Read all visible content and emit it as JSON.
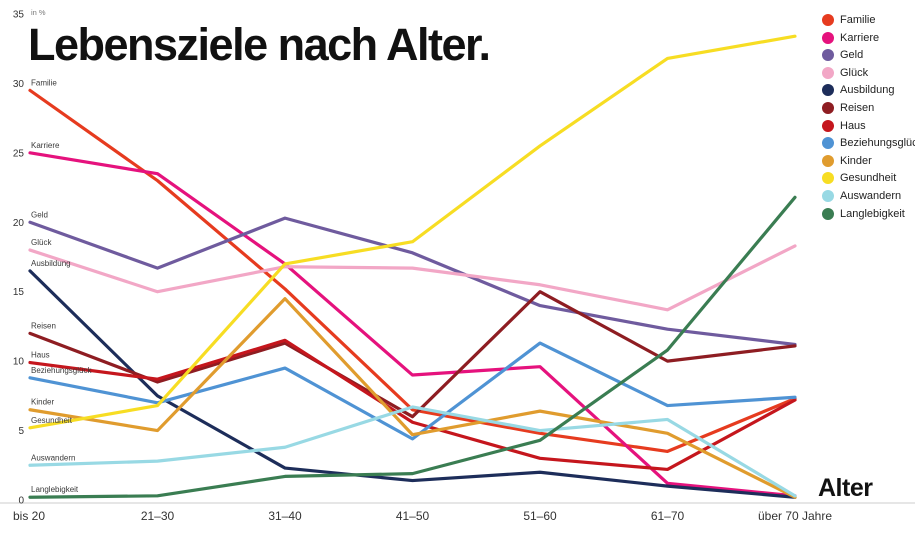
{
  "title": "Lebensziele nach Alter.",
  "x_axis_title": "Alter",
  "y_axis_unit": "in %",
  "chart_data": {
    "type": "line",
    "title": "Lebensziele nach Alter.",
    "xlabel": "Alter",
    "ylabel": "in %",
    "ylim": [
      0,
      35
    ],
    "yticks": [
      0,
      5,
      10,
      15,
      20,
      25,
      30,
      35
    ],
    "grid": false,
    "legend_position": "top-right",
    "categories": [
      "bis 20",
      "21–30",
      "31–40",
      "41–50",
      "51–60",
      "61–70",
      "über 70 Jahre"
    ],
    "series": [
      {
        "name": "Familie",
        "color": "#e63b1f",
        "values": [
          29.5,
          23.0,
          15.2,
          6.5,
          4.8,
          3.5,
          7.3
        ]
      },
      {
        "name": "Karriere",
        "color": "#e5127d",
        "values": [
          25.0,
          23.5,
          17.0,
          9.0,
          9.6,
          1.2,
          0.3
        ]
      },
      {
        "name": "Geld",
        "color": "#6f5b9e",
        "values": [
          20.0,
          16.7,
          20.3,
          17.8,
          14.0,
          12.3,
          11.2
        ]
      },
      {
        "name": "Glück",
        "color": "#f2a7c6",
        "values": [
          18.0,
          15.0,
          16.8,
          16.7,
          15.5,
          13.7,
          18.3
        ]
      },
      {
        "name": "Ausbildung",
        "color": "#1d2d5a",
        "values": [
          16.5,
          7.5,
          2.3,
          1.4,
          2.0,
          1.0,
          0.2
        ]
      },
      {
        "name": "Reisen",
        "color": "#8e1d22",
        "values": [
          12.0,
          8.5,
          11.3,
          6.0,
          15.0,
          10.0,
          11.1
        ]
      },
      {
        "name": "Haus",
        "color": "#c5161d",
        "values": [
          9.9,
          8.7,
          11.5,
          5.6,
          3.0,
          2.2,
          7.2
        ]
      },
      {
        "name": "Beziehungsglück",
        "color": "#4f93d4",
        "values": [
          8.8,
          7.0,
          9.5,
          4.4,
          11.3,
          6.8,
          7.4
        ]
      },
      {
        "name": "Kinder",
        "color": "#e09c2e",
        "values": [
          6.5,
          5.0,
          14.5,
          4.7,
          6.4,
          4.8,
          0.2
        ]
      },
      {
        "name": "Gesundheit",
        "color": "#f7dd23",
        "values": [
          5.2,
          6.8,
          17.0,
          18.6,
          25.5,
          31.8,
          33.4
        ]
      },
      {
        "name": "Auswandern",
        "color": "#98d9e4",
        "values": [
          2.5,
          2.8,
          3.8,
          6.7,
          5.0,
          5.8,
          0.3
        ]
      },
      {
        "name": "Langlebigkeit",
        "color": "#3a7d52",
        "values": [
          0.2,
          0.3,
          1.7,
          1.9,
          4.3,
          10.8,
          21.8
        ]
      }
    ]
  }
}
